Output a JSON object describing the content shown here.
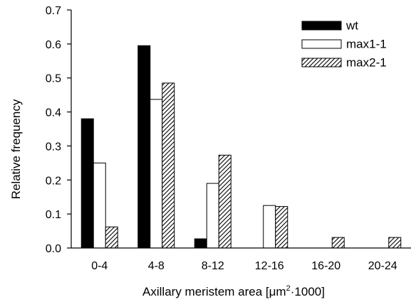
{
  "chart_data": {
    "type": "bar",
    "categories": [
      "0-4",
      "4-8",
      "8-12",
      "12-16",
      "16-20",
      "20-24"
    ],
    "series": [
      {
        "name": "wt",
        "values": [
          0.38,
          0.595,
          0.027,
          0,
          0,
          0
        ],
        "color": "#000000",
        "pattern": "solid"
      },
      {
        "name": "max1-1",
        "values": [
          0.25,
          0.437,
          0.19,
          0.125,
          0,
          0
        ],
        "color": "#ffffff",
        "pattern": "hollow"
      },
      {
        "name": "max2-1",
        "values": [
          0.062,
          0.485,
          0.273,
          0.122,
          0.031,
          0.031
        ],
        "color": "#ffffff",
        "pattern": "hatched"
      }
    ],
    "ylim": [
      0,
      0.7
    ],
    "yticks": [
      "0.0",
      "0.1",
      "0.2",
      "0.3",
      "0.4",
      "0.5",
      "0.6",
      "0.7"
    ],
    "ylabel": "Relative frequency",
    "xlabel_prefix": "Axillary meristem area [",
    "xlabel_unit": "μm",
    "xlabel_sup": "2",
    "xlabel_dot": "·",
    "xlabel_suffix": "1000]",
    "legend_position": "top-right",
    "grid": false
  }
}
